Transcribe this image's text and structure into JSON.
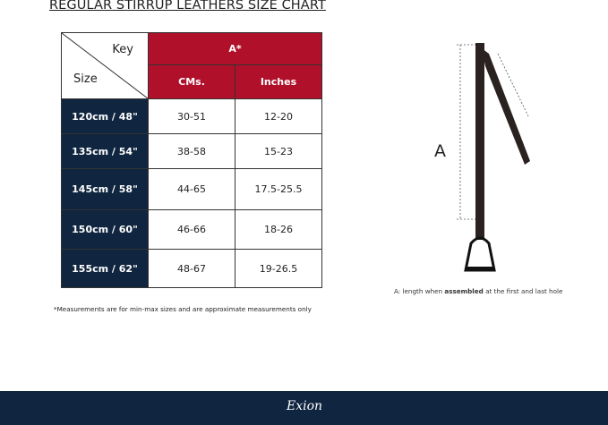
{
  "title": "REGULAR STIRRUP LEATHERS  SIZE CHART",
  "table": {
    "corner_key": "Key",
    "corner_size": "Size",
    "group_header": "A*",
    "columns": [
      "CMs.",
      "Inches"
    ],
    "rows": [
      {
        "size": "120cm / 48\"",
        "cms": "30-51",
        "inches": "12-20"
      },
      {
        "size": "135cm / 54\"",
        "cms": "38-58",
        "inches": "15-23"
      },
      {
        "size": "145cm / 58\"",
        "cms": "44-65",
        "inches": "17.5-25.5"
      },
      {
        "size": "150cm / 60\"",
        "cms": "46-66",
        "inches": "18-26"
      },
      {
        "size": "155cm / 62\"",
        "cms": "48-67",
        "inches": "19-26.5"
      }
    ]
  },
  "note": "*Measurements are for min-max sizes and are approximate measurements only",
  "diagram": {
    "label": "A",
    "caption_pre": "A: length when ",
    "caption_bold": "assembled",
    "caption_post": " at the first and last hole"
  },
  "footer": {
    "logo": "Exion"
  },
  "colors": {
    "header_red": "#b0102a",
    "navy": "#10253f"
  }
}
